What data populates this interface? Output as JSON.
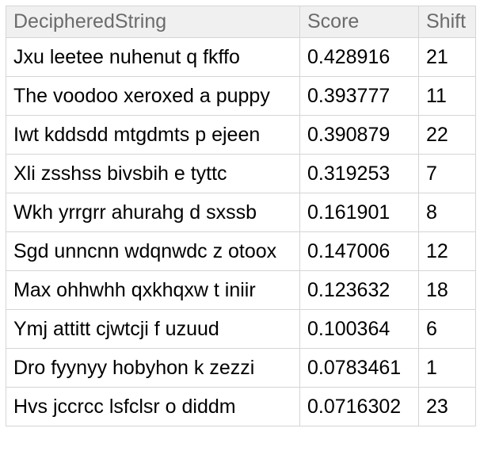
{
  "table": {
    "columns": [
      {
        "label": "DecipheredString"
      },
      {
        "label": "Score"
      },
      {
        "label": "Shift"
      }
    ],
    "rows": [
      {
        "deciphered": "Jxu leetee nuhenut q fkffo",
        "score": "0.428916",
        "shift": "21"
      },
      {
        "deciphered": "The voodoo xeroxed a puppy",
        "score": "0.393777",
        "shift": "11"
      },
      {
        "deciphered": "Iwt kddsdd mtgdmts p ejeen",
        "score": "0.390879",
        "shift": "22"
      },
      {
        "deciphered": "Xli zsshss bivsbih e tyttc",
        "score": "0.319253",
        "shift": "7"
      },
      {
        "deciphered": "Wkh yrrgrr ahurahg d sxssb",
        "score": "0.161901",
        "shift": "8"
      },
      {
        "deciphered": "Sgd unncnn wdqnwdc z otoox",
        "score": "0.147006",
        "shift": "12"
      },
      {
        "deciphered": "Max ohhwhh qxkhqxw t iniir",
        "score": "0.123632",
        "shift": "18"
      },
      {
        "deciphered": "Ymj attitt cjwtcji f uzuud",
        "score": "0.100364",
        "shift": "6"
      },
      {
        "deciphered": "Dro fyynyy hobyhon k zezzi",
        "score": "0.0783461",
        "shift": "1"
      },
      {
        "deciphered": "Hvs jccrcc lsfclsr o diddm",
        "score": "0.0716302",
        "shift": "23"
      }
    ]
  },
  "colors": {
    "page_background": "#ffffff",
    "header_background": "#f0f0f0",
    "header_text": "#6b6b6b",
    "cell_background": "#ffffff",
    "cell_text": "#000000",
    "border": "#d5d5d5"
  },
  "chart_data": {
    "type": "table",
    "columns": [
      "DecipheredString",
      "Score",
      "Shift"
    ],
    "rows": [
      [
        "Jxu leetee nuhenut q fkffo",
        0.428916,
        21
      ],
      [
        "The voodoo xeroxed a puppy",
        0.393777,
        11
      ],
      [
        "Iwt kddsdd mtgdmts p ejeen",
        0.390879,
        22
      ],
      [
        "Xli zsshss bivsbih e tyttc",
        0.319253,
        7
      ],
      [
        "Wkh yrrgrr ahurahg d sxssb",
        0.161901,
        8
      ],
      [
        "Sgd unncnn wdqnwdc z otoox",
        0.147006,
        12
      ],
      [
        "Max ohhwhh qxkhqxw t iniir",
        0.123632,
        18
      ],
      [
        "Ymj attitt cjwtcji f uzuud",
        0.100364,
        6
      ],
      [
        "Dro fyynyy hobyhon k zezzi",
        0.0783461,
        1
      ],
      [
        "Hvs jccrcc lsfclsr o diddm",
        0.0716302,
        23
      ]
    ]
  }
}
